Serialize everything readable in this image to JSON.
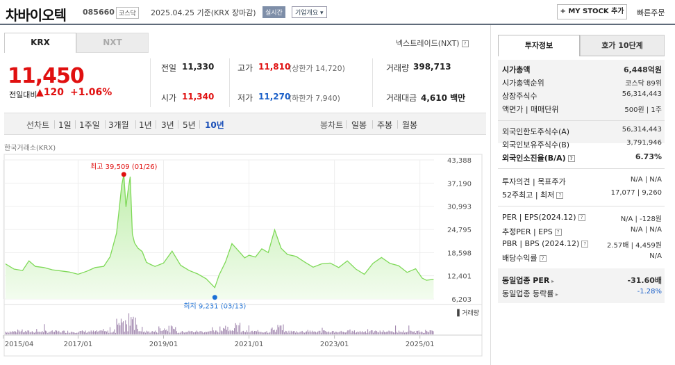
{
  "header": {
    "stock_name": "차바이오텍",
    "stock_code": "085660",
    "market": "코스닥",
    "date_text": "2025.04.25 기준(KRX 장마감)",
    "realtime_badge": "실시간",
    "overview_button": "기업개요 ▾",
    "mystock_button": "+ MY STOCK 추가",
    "quick_order": "빠른주문"
  },
  "tabs": {
    "krx": "KRX",
    "nxt": "NXT",
    "nxt_link": "넥스트레이드(NXT)"
  },
  "quote": {
    "price": "11,450",
    "change_label": "전일대비",
    "change_value": "▲120",
    "change_pct": "+1.06%",
    "prev_close_label": "전일",
    "prev_close": "11,330",
    "open_label": "시가",
    "open": "11,340",
    "high_label": "고가",
    "high": "11,810",
    "upper_limit": "(상한가 14,720)",
    "low_label": "저가",
    "low": "11,270",
    "lower_limit": "(하한가 7,940)",
    "volume_label": "거래량",
    "volume": "398,713",
    "amount_label": "거래대금",
    "amount": "4,610 백만"
  },
  "period_bar": {
    "line_chart_label": "선차트",
    "periods": [
      "1일",
      "1주일",
      "3개월",
      "1년",
      "3년",
      "5년",
      "10년"
    ],
    "selected_period": "10년",
    "candle_label": "봉차트",
    "candle_periods": [
      "일봉",
      "주봉",
      "월봉"
    ]
  },
  "chart_data": {
    "type": "area",
    "source_label": "한국거래소(KRX)",
    "x_ticks": [
      "2015/04",
      "2017/01",
      "2019/01",
      "2021/01",
      "2023/01",
      "2025/01"
    ],
    "y_ticks": [
      "43,388",
      "37,190",
      "30,993",
      "24,795",
      "18,598",
      "12,401",
      "6,203"
    ],
    "ylim": [
      6203,
      43388
    ],
    "volume_label": "거래량",
    "max_label": "최고 39,509 (01/26)",
    "min_label": "최저 9,231 (03/13)",
    "max": {
      "x": 2018.07,
      "y": 39509
    },
    "min": {
      "x": 2020.2,
      "y": 9231
    },
    "colors": {
      "line": "#7ed957",
      "fill": "#d9f5cc",
      "max_dot": "#e01010",
      "min_dot": "#1a6fd6",
      "volume": "#9a7ea8"
    },
    "series": [
      {
        "x": [
          2015.3,
          2015.5,
          2015.7,
          2015.85,
          2016.0,
          2016.2,
          2016.4,
          2016.6,
          2016.8,
          2017.0,
          2017.2,
          2017.4,
          2017.6,
          2017.75,
          2017.9,
          2017.97,
          2018.02,
          2018.07,
          2018.12,
          2018.17,
          2018.22,
          2018.27,
          2018.32,
          2018.4,
          2018.5,
          2018.6,
          2018.7,
          2018.8,
          2019.0,
          2019.2,
          2019.4,
          2019.6,
          2019.8,
          2020.0,
          2020.1,
          2020.2,
          2020.3,
          2020.45,
          2020.6,
          2020.75,
          2020.9,
          2021.0,
          2021.15,
          2021.3,
          2021.45,
          2021.6,
          2021.75,
          2021.9,
          2022.1,
          2022.3,
          2022.5,
          2022.7,
          2022.9,
          2023.1,
          2023.3,
          2023.5,
          2023.7,
          2023.9,
          2024.1,
          2024.3,
          2024.5,
          2024.7,
          2024.9,
          2025.05,
          2025.15,
          2025.32
        ],
        "y": [
          15600,
          14200,
          13800,
          16400,
          14900,
          14600,
          14000,
          13700,
          13400,
          12800,
          13600,
          14600,
          14900,
          17500,
          23800,
          31000,
          36500,
          39509,
          30800,
          35200,
          38900,
          23600,
          21200,
          19800,
          18900,
          16000,
          15400,
          14900,
          15800,
          19000,
          15200,
          13800,
          12900,
          11600,
          10400,
          9231,
          12600,
          16100,
          21000,
          19100,
          17200,
          17900,
          17400,
          19600,
          18600,
          24700,
          19800,
          18100,
          17600,
          16100,
          14700,
          15600,
          15800,
          14600,
          16400,
          14200,
          12800,
          15700,
          17300,
          15700,
          15100,
          13300,
          14300,
          11800,
          11200,
          11450
        ]
      }
    ]
  },
  "right_panel": {
    "tab_invest": "투자정보",
    "tab_hoga": "호가 10단계",
    "market_cap": {
      "label": "시가총액",
      "value": "6,448억원"
    },
    "market_cap_rank": {
      "label": "시가총액순위",
      "value": "코스닥 89위"
    },
    "shares": {
      "label": "상장주식수",
      "value": "56,314,443"
    },
    "par_unit": {
      "label": "액면가 | 매매단위",
      "value": "500원 | 1주"
    },
    "foreign_limit": {
      "label": "외국인한도주식수(A)",
      "value": "56,314,443"
    },
    "foreign_hold": {
      "label": "외국인보유주식수(B)",
      "value": "3,791,946"
    },
    "foreign_rate": {
      "label": "외국인소진율(B/A)",
      "value": "6.73%"
    },
    "opinion": {
      "label": "투자의견 | 목표주가",
      "value": "N/A | N/A"
    },
    "week52": {
      "label": "52주최고 | 최저",
      "value": "17,077 | 9,260"
    },
    "per_eps": {
      "label": "PER | EPS(2024.12)",
      "value": "N/A | -128원"
    },
    "est_per_eps": {
      "label": "추정PER | EPS",
      "value": "N/A | N/A"
    },
    "pbr_bps": {
      "label": "PBR | BPS (2024.12)",
      "value": "2.57배 | 4,459원"
    },
    "dividend": {
      "label": "배당수익률",
      "value": "N/A"
    },
    "sector_per": {
      "label": "동일업종 PER",
      "value": "-31.60배"
    },
    "sector_change": {
      "label": "동일업종 등락률",
      "value": "-1.28%"
    }
  }
}
